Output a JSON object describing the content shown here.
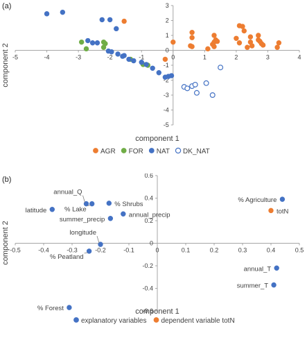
{
  "chart_data": [
    {
      "panel_label": "(a)",
      "type": "scatter",
      "xlabel": "component 1",
      "ylabel": "component 2",
      "xlim": [
        -5,
        4
      ],
      "ylim": [
        -5,
        3
      ],
      "x_ticks": [
        -5,
        -4,
        -3,
        -2,
        -1,
        0,
        1,
        2,
        3,
        4
      ],
      "y_ticks": [
        -5,
        -4,
        -3,
        -2,
        -1,
        0,
        1,
        2,
        3
      ],
      "axes_cross_at_origin": true,
      "grid": false,
      "legend_position": "bottom",
      "series": [
        {
          "name": "AGR",
          "color": "#ed7d31",
          "marker": "filled-circle",
          "points": [
            [
              -1.55,
              1.95
            ],
            [
              -0.25,
              -0.6
            ],
            [
              0.0,
              0.55
            ],
            [
              0.6,
              0.85
            ],
            [
              0.6,
              1.2
            ],
            [
              0.55,
              0.3
            ],
            [
              0.6,
              0.25
            ],
            [
              1.1,
              0.1
            ],
            [
              1.25,
              0.4
            ],
            [
              1.3,
              1.0
            ],
            [
              1.35,
              0.7
            ],
            [
              1.3,
              0.55
            ],
            [
              1.4,
              0.6
            ],
            [
              1.3,
              0.25
            ],
            [
              2.0,
              0.8
            ],
            [
              2.1,
              0.5
            ],
            [
              2.1,
              1.65
            ],
            [
              2.2,
              1.6
            ],
            [
              2.25,
              1.3
            ],
            [
              2.35,
              0.2
            ],
            [
              2.45,
              0.9
            ],
            [
              2.45,
              0.55
            ],
            [
              2.5,
              0.3
            ],
            [
              2.7,
              0.7
            ],
            [
              2.7,
              1.0
            ],
            [
              2.75,
              0.6
            ],
            [
              2.8,
              0.45
            ],
            [
              2.85,
              0.35
            ],
            [
              3.3,
              0.2
            ],
            [
              3.35,
              0.5
            ]
          ]
        },
        {
          "name": "FOR",
          "color": "#70ad47",
          "marker": "filled-circle",
          "points": [
            [
              -2.9,
              0.55
            ],
            [
              -2.75,
              0.1
            ],
            [
              -2.2,
              0.2
            ],
            [
              -2.15,
              0.45
            ],
            [
              -2.2,
              0.55
            ],
            [
              -1.35,
              -0.6
            ],
            [
              -0.95,
              -0.95
            ],
            [
              -0.8,
              -1.0
            ]
          ]
        },
        {
          "name": "NAT",
          "color": "#4472c4",
          "marker": "filled-circle",
          "points": [
            [
              -4.0,
              2.45
            ],
            [
              -3.5,
              2.55
            ],
            [
              -2.7,
              0.65
            ],
            [
              -2.55,
              0.5
            ],
            [
              -2.4,
              0.5
            ],
            [
              -2.05,
              -0.05
            ],
            [
              -1.75,
              -0.25
            ],
            [
              -1.55,
              -0.35
            ],
            [
              -1.4,
              -0.6
            ],
            [
              -1.25,
              -0.7
            ],
            [
              -1.0,
              -0.8
            ],
            [
              -0.85,
              -0.95
            ],
            [
              -0.65,
              -1.2
            ],
            [
              -0.45,
              -1.5
            ],
            [
              -0.25,
              -1.8
            ],
            [
              -0.15,
              -1.75
            ],
            [
              -0.05,
              -1.7
            ],
            [
              -2.25,
              2.05
            ],
            [
              -2.0,
              2.05
            ],
            [
              -1.8,
              1.45
            ],
            [
              -1.95,
              -0.1
            ],
            [
              -1.6,
              -0.4
            ]
          ]
        },
        {
          "name": "DK_NAT",
          "color": "#4472c4",
          "marker": "hollow-circle",
          "points": [
            [
              0.35,
              -2.45
            ],
            [
              0.45,
              -2.55
            ],
            [
              0.6,
              -2.4
            ],
            [
              0.7,
              -2.3
            ],
            [
              0.75,
              -2.85
            ],
            [
              1.05,
              -2.2
            ],
            [
              1.5,
              -1.15
            ],
            [
              1.25,
              -3.0
            ]
          ]
        }
      ]
    },
    {
      "panel_label": "(b)",
      "type": "scatter",
      "xlabel": "component 1",
      "ylabel": "component 2",
      "xlim": [
        -0.5,
        0.5
      ],
      "ylim": [
        -0.6,
        0.6
      ],
      "x_ticks": [
        -0.5,
        -0.4,
        -0.3,
        -0.2,
        -0.1,
        0,
        0.1,
        0.2,
        0.3,
        0.4,
        0.5
      ],
      "x_tick_labels": [
        "-0.5",
        "-0.4",
        "-0.3",
        "-0.2",
        "-0.1",
        "0",
        "0.1",
        "0.2",
        "0.3",
        "0.4",
        "0.5"
      ],
      "y_ticks": [
        -0.6,
        -0.4,
        -0.2,
        0,
        0.2,
        0.4,
        0.6
      ],
      "y_tick_labels": [
        "-0.6",
        "-0.4",
        "-0.2",
        "0",
        "0.2",
        "0.4",
        "0.6"
      ],
      "axes_cross_at_origin": true,
      "grid": false,
      "legend_position": "bottom",
      "series": [
        {
          "name": "explanatory variables",
          "color": "#4472c4",
          "marker": "filled-circle",
          "points": [
            {
              "x": -0.37,
              "y": 0.3,
              "label": "latitude",
              "label_side": "left"
            },
            {
              "x": -0.25,
              "y": 0.35,
              "label": "annual_Q",
              "label_side": "above-left"
            },
            {
              "x": -0.23,
              "y": 0.35,
              "label": "% Lake",
              "label_side": "below-left"
            },
            {
              "x": -0.17,
              "y": 0.355,
              "label": "% Shrubs",
              "label_side": "right"
            },
            {
              "x": -0.12,
              "y": 0.26,
              "label": "annual_precip",
              "label_side": "right"
            },
            {
              "x": -0.165,
              "y": 0.22,
              "label": "summer_precip",
              "label_side": "left"
            },
            {
              "x": -0.2,
              "y": -0.01,
              "label": "longitude",
              "label_side": "above-left"
            },
            {
              "x": -0.24,
              "y": -0.07,
              "label": "% Peatland",
              "label_side": "below-left"
            },
            {
              "x": -0.31,
              "y": -0.57,
              "label": "% Forest",
              "label_side": "left"
            },
            {
              "x": 0.44,
              "y": 0.39,
              "label": "% Agriculture",
              "label_side": "left"
            },
            {
              "x": 0.42,
              "y": -0.22,
              "label": "annual_T",
              "label_side": "left"
            },
            {
              "x": 0.41,
              "y": -0.37,
              "label": "summer_T",
              "label_side": "left"
            }
          ]
        },
        {
          "name": "dependent variable totN",
          "color": "#ed7d31",
          "marker": "filled-circle",
          "points": [
            {
              "x": 0.4,
              "y": 0.29,
              "label": "totN",
              "label_side": "right"
            }
          ]
        }
      ]
    }
  ]
}
